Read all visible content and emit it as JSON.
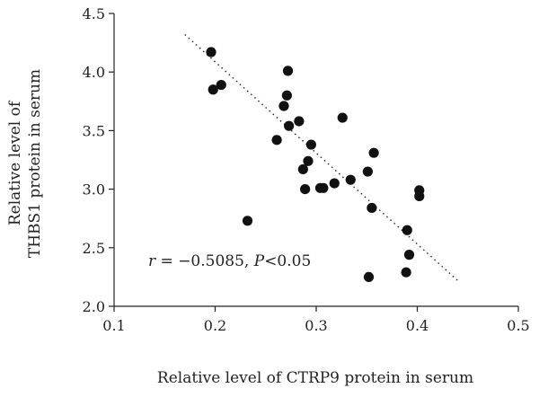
{
  "chart_data": {
    "type": "scatter",
    "xlabel": "Relative level of CTRP9 protein in serum",
    "ylabel": "Relative level of THBS1 protein in serum",
    "xlim": [
      0.1,
      0.5
    ],
    "ylim": [
      2.0,
      4.5
    ],
    "xticks": [
      "0.1",
      "0.2",
      "0.3",
      "0.4",
      "0.5"
    ],
    "yticks": [
      "2.0",
      "2.5",
      "3.0",
      "3.5",
      "4.0",
      "4.5"
    ],
    "annotation": {
      "r_symbol": "r",
      "r_value": " = −0.5085, ",
      "p_symbol": "P",
      "p_value": "<0.05"
    },
    "trendline": {
      "x": [
        0.17,
        0.44
      ],
      "y": [
        4.32,
        2.22
      ]
    },
    "points": [
      {
        "x": 0.196,
        "y": 4.17
      },
      {
        "x": 0.198,
        "y": 3.85
      },
      {
        "x": 0.206,
        "y": 3.89
      },
      {
        "x": 0.232,
        "y": 2.73
      },
      {
        "x": 0.261,
        "y": 3.42
      },
      {
        "x": 0.268,
        "y": 3.71
      },
      {
        "x": 0.271,
        "y": 3.8
      },
      {
        "x": 0.272,
        "y": 4.01
      },
      {
        "x": 0.273,
        "y": 3.54
      },
      {
        "x": 0.283,
        "y": 3.58
      },
      {
        "x": 0.287,
        "y": 3.17
      },
      {
        "x": 0.289,
        "y": 3.0
      },
      {
        "x": 0.292,
        "y": 3.24
      },
      {
        "x": 0.295,
        "y": 3.38
      },
      {
        "x": 0.304,
        "y": 3.01
      },
      {
        "x": 0.307,
        "y": 3.01
      },
      {
        "x": 0.318,
        "y": 3.05
      },
      {
        "x": 0.326,
        "y": 3.61
      },
      {
        "x": 0.334,
        "y": 3.08
      },
      {
        "x": 0.351,
        "y": 3.15
      },
      {
        "x": 0.352,
        "y": 2.25
      },
      {
        "x": 0.355,
        "y": 2.84
      },
      {
        "x": 0.357,
        "y": 3.31
      },
      {
        "x": 0.389,
        "y": 2.29
      },
      {
        "x": 0.39,
        "y": 2.65
      },
      {
        "x": 0.392,
        "y": 2.44
      },
      {
        "x": 0.402,
        "y": 2.99
      },
      {
        "x": 0.402,
        "y": 2.94
      }
    ]
  }
}
